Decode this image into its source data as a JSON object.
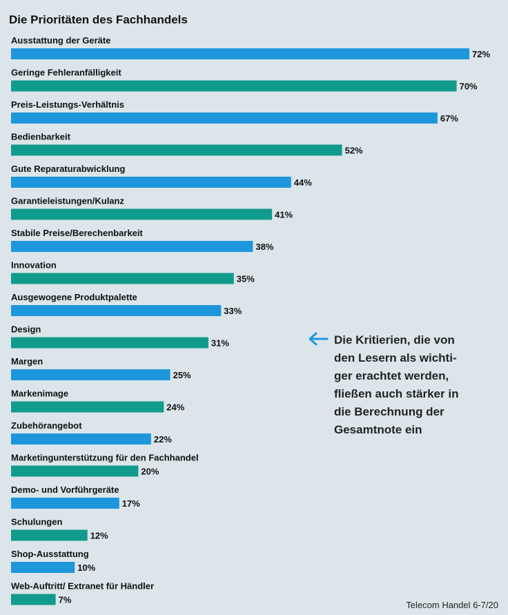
{
  "chart_data": {
    "type": "bar",
    "orientation": "horizontal",
    "title": "Die Prioritäten des Fachhandels",
    "value_suffix": "%",
    "xlim": [
      0,
      72
    ],
    "grid": false,
    "categories": [
      "Ausstattung der Geräte",
      "Geringe Fehleranfälligkeit",
      "Preis-Leistungs-Verhältnis",
      "Bedienbarkeit",
      "Gute Reparaturabwicklung",
      "Garantieleistungen/Kulanz",
      "Stabile Preise/Berechenbarkeit",
      "Innovation",
      "Ausgewogene Produktpalette",
      "Design",
      "Margen",
      "Markenimage",
      "Zubehörangebot",
      "Marketingunterstützung für den Fachhandel",
      "Demo- und Vorführgeräte",
      "Schulungen",
      "Shop-Ausstattung",
      "Web-Auftritt/ Extranet für Händler"
    ],
    "values": [
      72,
      70,
      67,
      52,
      44,
      41,
      38,
      35,
      33,
      31,
      25,
      24,
      22,
      20,
      17,
      12,
      10,
      7
    ],
    "colors": [
      "#1e96dc",
      "#119b8c"
    ]
  },
  "annotation": {
    "text": "Die Kritierien, die von\nden Lesern als wichti-\nger erachtet werden,\nfließen auch stärker in\ndie Berechnung der\nGesamtnote ein",
    "icon": "arrow-left-icon",
    "color": "#1e96dc"
  },
  "source": "Telecom Handel 6-7/20"
}
